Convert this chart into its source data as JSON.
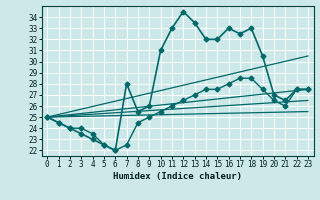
{
  "xlabel": "Humidex (Indice chaleur)",
  "background_color": "#cce8e8",
  "grid_color": "#ffffff",
  "line_color": "#006868",
  "xlim": [
    -0.5,
    23.5
  ],
  "ylim": [
    21.5,
    35.0
  ],
  "yticks": [
    22,
    23,
    24,
    25,
    26,
    27,
    28,
    29,
    30,
    31,
    32,
    33,
    34
  ],
  "xticks": [
    0,
    1,
    2,
    3,
    4,
    5,
    6,
    7,
    8,
    9,
    10,
    11,
    12,
    13,
    14,
    15,
    16,
    17,
    18,
    19,
    20,
    21,
    22,
    23
  ],
  "series": [
    {
      "x": [
        0,
        1,
        2,
        3,
        4,
        5,
        6,
        7,
        8,
        9,
        10,
        11,
        12,
        13,
        14,
        15,
        16,
        17,
        18,
        19,
        20,
        21,
        22,
        23
      ],
      "y": [
        25.0,
        24.5,
        24.0,
        23.5,
        23.0,
        22.5,
        22.0,
        28.0,
        25.5,
        26.0,
        31.0,
        33.0,
        34.5,
        33.5,
        32.0,
        32.0,
        33.0,
        32.5,
        33.0,
        30.5,
        27.0,
        26.5,
        27.5,
        27.5
      ],
      "marker": "D",
      "markersize": 2.5,
      "linewidth": 1.2
    },
    {
      "x": [
        0,
        1,
        2,
        3,
        4,
        5,
        6,
        7,
        8,
        9,
        10,
        11,
        12,
        13,
        14,
        15,
        16,
        17,
        18,
        19,
        20,
        21,
        22,
        23
      ],
      "y": [
        25.0,
        24.5,
        24.0,
        24.0,
        23.5,
        22.5,
        22.0,
        22.5,
        24.5,
        25.0,
        25.5,
        26.0,
        26.5,
        27.0,
        27.5,
        27.5,
        28.0,
        28.5,
        28.5,
        27.5,
        26.5,
        26.0,
        27.5,
        27.5
      ],
      "marker": "D",
      "markersize": 2.5,
      "linewidth": 1.0
    },
    {
      "x": [
        0,
        23
      ],
      "y": [
        25.0,
        30.5
      ],
      "marker": null,
      "linewidth": 0.9
    },
    {
      "x": [
        0,
        23
      ],
      "y": [
        25.0,
        27.5
      ],
      "marker": null,
      "linewidth": 0.9
    },
    {
      "x": [
        0,
        23
      ],
      "y": [
        25.0,
        26.5
      ],
      "marker": null,
      "linewidth": 0.9
    },
    {
      "x": [
        0,
        23
      ],
      "y": [
        25.0,
        25.5
      ],
      "marker": null,
      "linewidth": 0.9
    }
  ]
}
